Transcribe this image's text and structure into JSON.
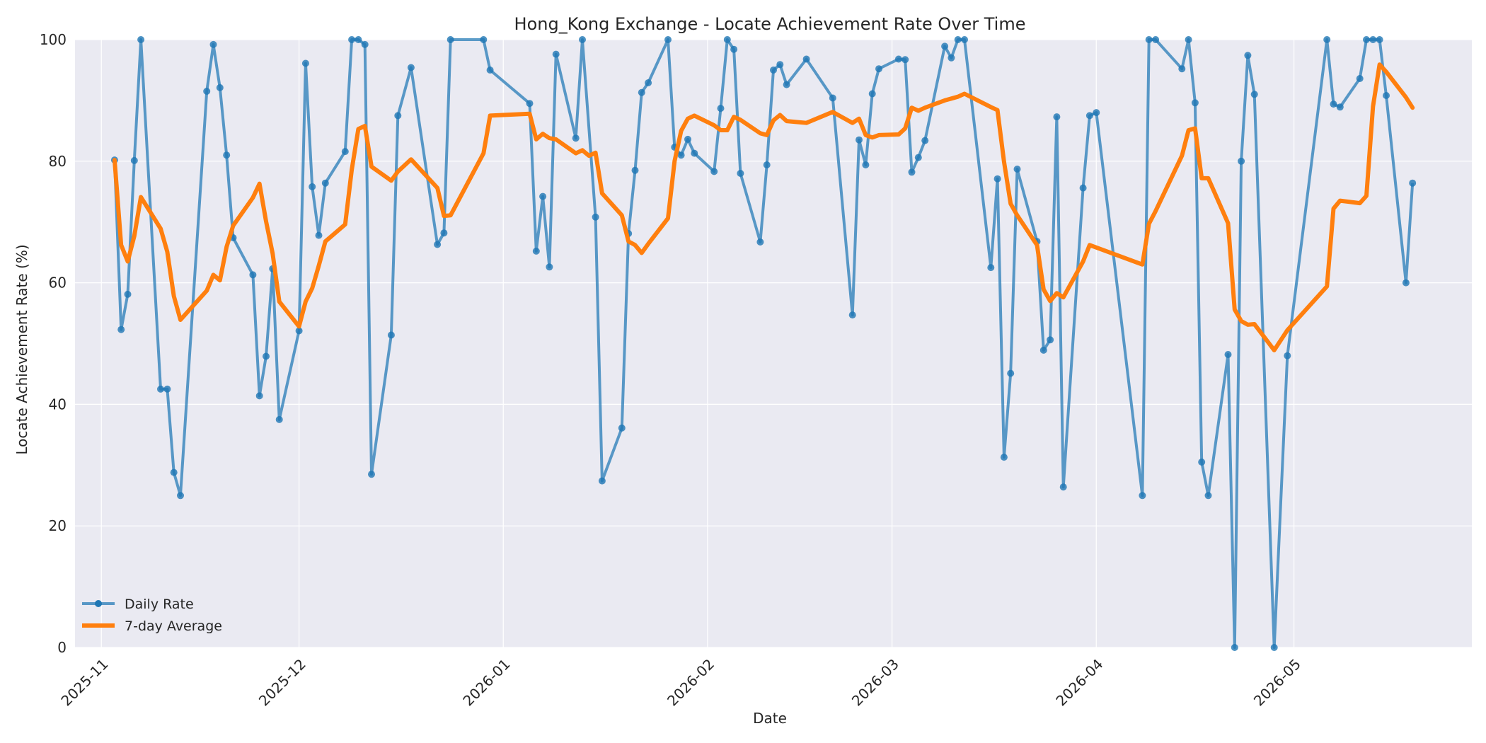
{
  "chart_data": {
    "type": "line",
    "title": "Hong_Kong Exchange - Locate Achievement Rate Over Time",
    "xlabel": "Date",
    "ylabel": "Locate Achievement Rate (%)",
    "ylim": [
      0,
      100
    ],
    "xlim": [
      "2025-10-28",
      "2026-05-28"
    ],
    "yticks": [
      0,
      20,
      40,
      60,
      80,
      100
    ],
    "xticks": [
      "2025-11-01",
      "2025-12-01",
      "2026-01-01",
      "2026-02-01",
      "2026-03-01",
      "2026-04-01",
      "2026-05-01"
    ],
    "xtick_labels": [
      "2025-11",
      "2025-12",
      "2026-01",
      "2026-02",
      "2026-03",
      "2026-04",
      "2026-05"
    ],
    "grid": true,
    "legend_position": "lower-left",
    "colors": {
      "daily": "#1f77b4",
      "average": "#ff7f0e",
      "plot_background": "#eaeaf2",
      "grid": "#ffffff"
    },
    "series": [
      {
        "name": "Daily Rate",
        "marker": "circle",
        "points": [
          [
            "2025-11-03",
            80.2
          ],
          [
            "2025-11-04",
            52.3
          ],
          [
            "2025-11-05",
            58.1
          ],
          [
            "2025-11-06",
            80.1
          ],
          [
            "2025-11-07",
            100.0
          ],
          [
            "2025-11-10",
            42.5
          ],
          [
            "2025-11-11",
            42.5
          ],
          [
            "2025-11-12",
            28.8
          ],
          [
            "2025-11-13",
            25.0
          ],
          [
            "2025-11-17",
            91.5
          ],
          [
            "2025-11-18",
            99.2
          ],
          [
            "2025-11-19",
            92.1
          ],
          [
            "2025-11-20",
            81.0
          ],
          [
            "2025-11-21",
            67.4
          ],
          [
            "2025-11-24",
            61.3
          ],
          [
            "2025-11-25",
            41.4
          ],
          [
            "2025-11-26",
            47.9
          ],
          [
            "2025-11-27",
            62.3
          ],
          [
            "2025-11-28",
            37.5
          ],
          [
            "2025-12-01",
            52.1
          ],
          [
            "2025-12-02",
            96.1
          ],
          [
            "2025-12-03",
            75.8
          ],
          [
            "2025-12-04",
            67.8
          ],
          [
            "2025-12-05",
            76.4
          ],
          [
            "2025-12-08",
            81.6
          ],
          [
            "2025-12-09",
            100.0
          ],
          [
            "2025-12-10",
            100.0
          ],
          [
            "2025-12-11",
            99.2
          ],
          [
            "2025-12-12",
            28.5
          ],
          [
            "2025-12-15",
            51.4
          ],
          [
            "2025-12-16",
            87.5
          ],
          [
            "2025-12-18",
            95.4
          ],
          [
            "2025-12-22",
            66.3
          ],
          [
            "2025-12-23",
            68.2
          ],
          [
            "2025-12-24",
            100.0
          ],
          [
            "2025-12-29",
            100.0
          ],
          [
            "2025-12-30",
            95.0
          ],
          [
            "2026-01-05",
            89.5
          ],
          [
            "2026-01-06",
            65.2
          ],
          [
            "2026-01-07",
            74.2
          ],
          [
            "2026-01-08",
            62.6
          ],
          [
            "2026-01-09",
            97.6
          ],
          [
            "2026-01-12",
            83.8
          ],
          [
            "2026-01-13",
            100.0
          ],
          [
            "2026-01-15",
            70.8
          ],
          [
            "2026-01-16",
            27.4
          ],
          [
            "2026-01-19",
            36.1
          ],
          [
            "2026-01-20",
            68.1
          ],
          [
            "2026-01-21",
            78.5
          ],
          [
            "2026-01-22",
            91.3
          ],
          [
            "2026-01-23",
            92.9
          ],
          [
            "2026-01-26",
            100.0
          ],
          [
            "2026-01-27",
            82.3
          ],
          [
            "2026-01-28",
            81.0
          ],
          [
            "2026-01-29",
            83.6
          ],
          [
            "2026-01-30",
            81.3
          ],
          [
            "2026-02-02",
            78.3
          ],
          [
            "2026-02-03",
            88.7
          ],
          [
            "2026-02-04",
            100.0
          ],
          [
            "2026-02-05",
            98.4
          ],
          [
            "2026-02-06",
            78.0
          ],
          [
            "2026-02-09",
            66.7
          ],
          [
            "2026-02-10",
            79.4
          ],
          [
            "2026-02-11",
            95.0
          ],
          [
            "2026-02-12",
            95.9
          ],
          [
            "2026-02-13",
            92.6
          ],
          [
            "2026-02-16",
            96.8
          ],
          [
            "2026-02-20",
            90.4
          ],
          [
            "2026-02-23",
            54.7
          ],
          [
            "2026-02-24",
            83.5
          ],
          [
            "2026-02-25",
            79.4
          ],
          [
            "2026-02-26",
            91.1
          ],
          [
            "2026-02-27",
            95.2
          ],
          [
            "2026-03-02",
            96.8
          ],
          [
            "2026-03-03",
            96.7
          ],
          [
            "2026-03-04",
            78.2
          ],
          [
            "2026-03-05",
            80.6
          ],
          [
            "2026-03-06",
            83.4
          ],
          [
            "2026-03-09",
            98.9
          ],
          [
            "2026-03-10",
            97.0
          ],
          [
            "2026-03-11",
            100.0
          ],
          [
            "2026-03-12",
            100.0
          ],
          [
            "2026-03-16",
            62.5
          ],
          [
            "2026-03-17",
            77.1
          ],
          [
            "2026-03-18",
            31.3
          ],
          [
            "2026-03-19",
            45.1
          ],
          [
            "2026-03-20",
            78.7
          ],
          [
            "2026-03-23",
            66.8
          ],
          [
            "2026-03-24",
            48.9
          ],
          [
            "2026-03-25",
            50.6
          ],
          [
            "2026-03-26",
            87.3
          ],
          [
            "2026-03-27",
            26.4
          ],
          [
            "2026-03-30",
            75.6
          ],
          [
            "2026-03-31",
            87.5
          ],
          [
            "2026-04-01",
            88.0
          ],
          [
            "2026-04-08",
            25.0
          ],
          [
            "2026-04-09",
            100.0
          ],
          [
            "2026-04-10",
            100.0
          ],
          [
            "2026-04-14",
            95.2
          ],
          [
            "2026-04-15",
            100.0
          ],
          [
            "2026-04-16",
            89.6
          ],
          [
            "2026-04-17",
            30.5
          ],
          [
            "2026-04-18",
            25.0
          ],
          [
            "2026-04-21",
            48.2
          ],
          [
            "2026-04-22",
            0.0
          ],
          [
            "2026-04-23",
            80.0
          ],
          [
            "2026-04-24",
            97.4
          ],
          [
            "2026-04-25",
            91.0
          ],
          [
            "2026-04-28",
            0.0
          ],
          [
            "2026-04-30",
            48.0
          ],
          [
            "2026-05-06",
            100.0
          ],
          [
            "2026-05-07",
            89.4
          ],
          [
            "2026-05-08",
            88.9
          ],
          [
            "2026-05-11",
            93.6
          ],
          [
            "2026-05-12",
            100.0
          ],
          [
            "2026-05-13",
            100.0
          ],
          [
            "2026-05-14",
            100.0
          ],
          [
            "2026-05-15",
            90.8
          ],
          [
            "2026-05-18",
            60.0
          ],
          [
            "2026-05-19",
            76.4
          ]
        ]
      },
      {
        "name": "7-day Average",
        "marker": "none",
        "points": [
          [
            "2025-11-03",
            80.2
          ],
          [
            "2025-11-04",
            66.2
          ],
          [
            "2025-11-05",
            63.5
          ],
          [
            "2025-11-06",
            67.7
          ],
          [
            "2025-11-07",
            74.1
          ],
          [
            "2025-11-10",
            68.9
          ],
          [
            "2025-11-11",
            65.1
          ],
          [
            "2025-11-12",
            57.8
          ],
          [
            "2025-11-13",
            53.9
          ],
          [
            "2025-11-17",
            58.7
          ],
          [
            "2025-11-18",
            61.3
          ],
          [
            "2025-11-19",
            60.4
          ],
          [
            "2025-11-20",
            65.9
          ],
          [
            "2025-11-21",
            69.4
          ],
          [
            "2025-11-24",
            74.0
          ],
          [
            "2025-11-25",
            76.3
          ],
          [
            "2025-11-26",
            70.1
          ],
          [
            "2025-11-27",
            64.8
          ],
          [
            "2025-11-28",
            56.9
          ],
          [
            "2025-12-01",
            52.8
          ],
          [
            "2025-12-02",
            56.9
          ],
          [
            "2025-12-03",
            59.1
          ],
          [
            "2025-12-04",
            62.8
          ],
          [
            "2025-12-05",
            66.8
          ],
          [
            "2025-12-08",
            69.6
          ],
          [
            "2025-12-09",
            78.6
          ],
          [
            "2025-12-10",
            85.3
          ],
          [
            "2025-12-11",
            85.8
          ],
          [
            "2025-12-12",
            79.1
          ],
          [
            "2025-12-15",
            76.8
          ],
          [
            "2025-12-16",
            78.3
          ],
          [
            "2025-12-18",
            80.3
          ],
          [
            "2025-12-22",
            75.6
          ],
          [
            "2025-12-23",
            71.0
          ],
          [
            "2025-12-24",
            71.1
          ],
          [
            "2025-12-29",
            81.3
          ],
          [
            "2025-12-30",
            87.5
          ],
          [
            "2026-01-05",
            87.8
          ],
          [
            "2026-01-06",
            83.6
          ],
          [
            "2026-01-07",
            84.5
          ],
          [
            "2026-01-08",
            83.8
          ],
          [
            "2026-01-09",
            83.6
          ],
          [
            "2026-01-12",
            81.3
          ],
          [
            "2026-01-13",
            81.8
          ],
          [
            "2026-01-14",
            80.9
          ],
          [
            "2026-01-15",
            81.4
          ],
          [
            "2026-01-16",
            74.7
          ],
          [
            "2026-01-19",
            71.1
          ],
          [
            "2026-01-20",
            66.8
          ],
          [
            "2026-01-21",
            66.2
          ],
          [
            "2026-01-22",
            64.9
          ],
          [
            "2026-01-23",
            66.4
          ],
          [
            "2026-01-26",
            70.6
          ],
          [
            "2026-01-27",
            80.0
          ],
          [
            "2026-01-28",
            85.0
          ],
          [
            "2026-01-29",
            87.0
          ],
          [
            "2026-01-30",
            87.5
          ],
          [
            "2026-02-02",
            85.9
          ],
          [
            "2026-02-03",
            85.1
          ],
          [
            "2026-02-04",
            85.1
          ],
          [
            "2026-02-05",
            87.3
          ],
          [
            "2026-02-06",
            86.8
          ],
          [
            "2026-02-09",
            84.6
          ],
          [
            "2026-02-10",
            84.3
          ],
          [
            "2026-02-11",
            86.7
          ],
          [
            "2026-02-12",
            87.6
          ],
          [
            "2026-02-13",
            86.6
          ],
          [
            "2026-02-16",
            86.3
          ],
          [
            "2026-02-20",
            88.1
          ],
          [
            "2026-02-23",
            86.3
          ],
          [
            "2026-02-24",
            87.0
          ],
          [
            "2026-02-25",
            84.3
          ],
          [
            "2026-02-26",
            83.9
          ],
          [
            "2026-02-27",
            84.3
          ],
          [
            "2026-03-02",
            84.4
          ],
          [
            "2026-03-03",
            85.4
          ],
          [
            "2026-03-04",
            88.8
          ],
          [
            "2026-03-05",
            88.3
          ],
          [
            "2026-03-06",
            88.8
          ],
          [
            "2026-03-09",
            90.0
          ],
          [
            "2026-03-10",
            90.3
          ],
          [
            "2026-03-11",
            90.6
          ],
          [
            "2026-03-12",
            91.1
          ],
          [
            "2026-03-16",
            88.9
          ],
          [
            "2026-03-17",
            88.4
          ],
          [
            "2026-03-18",
            79.9
          ],
          [
            "2026-03-19",
            73.0
          ],
          [
            "2026-03-20",
            71.1
          ],
          [
            "2026-03-23",
            66.2
          ],
          [
            "2026-03-24",
            58.9
          ],
          [
            "2026-03-25",
            57.0
          ],
          [
            "2026-03-26",
            58.3
          ],
          [
            "2026-03-27",
            57.6
          ],
          [
            "2026-03-30",
            63.5
          ],
          [
            "2026-03-31",
            66.2
          ],
          [
            "2026-04-08",
            63.0
          ],
          [
            "2026-04-09",
            69.7
          ],
          [
            "2026-04-10",
            71.8
          ],
          [
            "2026-04-14",
            80.9
          ],
          [
            "2026-04-15",
            85.1
          ],
          [
            "2026-04-16",
            85.4
          ],
          [
            "2026-04-17",
            77.2
          ],
          [
            "2026-04-18",
            77.2
          ],
          [
            "2026-04-21",
            69.8
          ],
          [
            "2026-04-22",
            55.6
          ],
          [
            "2026-04-23",
            53.7
          ],
          [
            "2026-04-24",
            53.1
          ],
          [
            "2026-04-25",
            53.2
          ],
          [
            "2026-04-28",
            48.9
          ],
          [
            "2026-04-30",
            52.2
          ],
          [
            "2026-05-06",
            59.4
          ],
          [
            "2026-05-07",
            72.2
          ],
          [
            "2026-05-08",
            73.5
          ],
          [
            "2026-05-11",
            73.1
          ],
          [
            "2026-05-12",
            74.3
          ],
          [
            "2026-05-13",
            89.0
          ],
          [
            "2026-05-14",
            95.9
          ],
          [
            "2026-05-15",
            94.7
          ],
          [
            "2026-05-18",
            90.5
          ],
          [
            "2026-05-19",
            88.8
          ]
        ]
      }
    ]
  }
}
